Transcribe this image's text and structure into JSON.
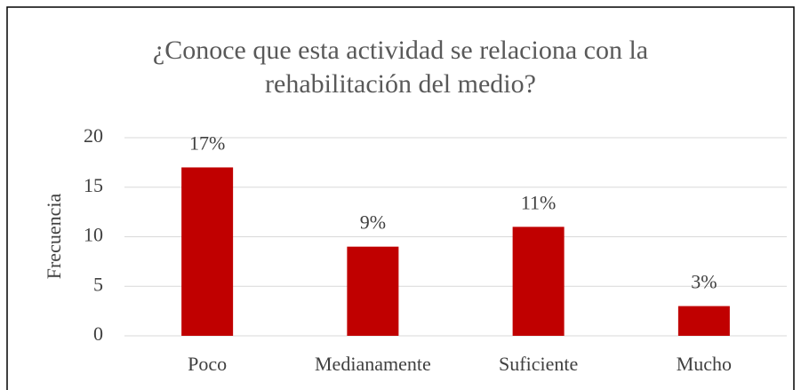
{
  "chart_data": {
    "type": "bar",
    "title": "¿Conoce que esta actividad se relaciona con la rehabilitación del medio?",
    "y_label": "Frecuencia",
    "categories": [
      "Poco",
      "Medianamente",
      "Suficiente",
      "Mucho"
    ],
    "values": [
      17,
      9,
      11,
      3
    ],
    "value_labels": [
      "17%",
      "9%",
      "11%",
      "3%"
    ],
    "color": "#c00000",
    "ylim": [
      0,
      20
    ],
    "yticks": [
      0,
      5,
      10,
      15,
      20
    ],
    "grid": true
  }
}
